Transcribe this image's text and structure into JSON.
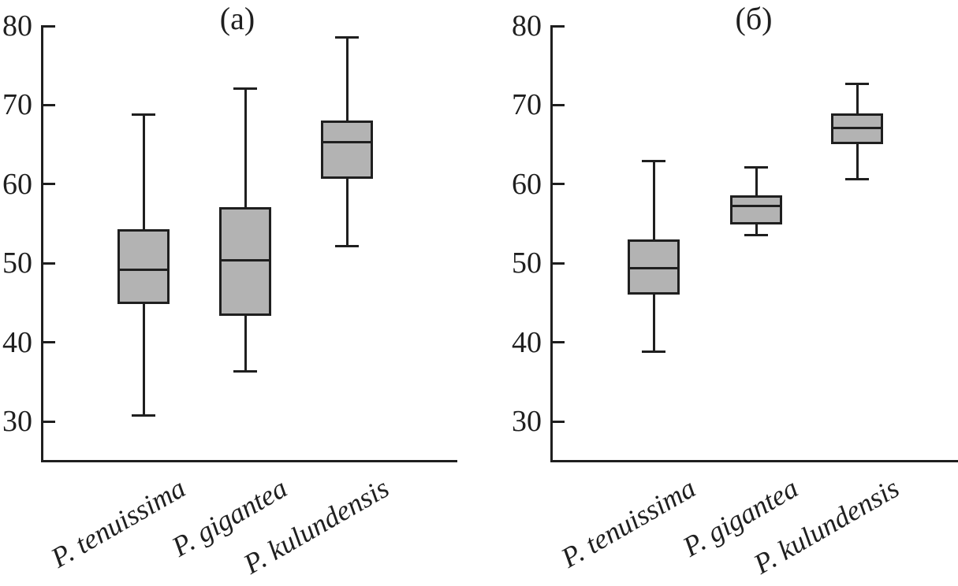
{
  "figure": {
    "background": "#ffffff",
    "line_color": "#1f1f1f",
    "box_fill": "#b3b3b3"
  },
  "chart_data": [
    {
      "type": "boxplot",
      "panel_label": "(а)",
      "categories": [
        "P. tenuissima",
        "P. gigantea",
        "P. kulundensis"
      ],
      "ylim": [
        25,
        80
      ],
      "yticks": [
        80,
        70,
        60,
        50,
        40,
        30
      ],
      "grid": false,
      "series": [
        {
          "name": "P. tenuissima",
          "low": 30.7,
          "q1": 44.8,
          "median": 49.2,
          "q3": 54.3,
          "high": 68.8
        },
        {
          "name": "P. gigantea",
          "low": 36.3,
          "q1": 43.3,
          "median": 50.4,
          "q3": 57.1,
          "high": 72.1
        },
        {
          "name": "P. kulundensis",
          "low": 52.2,
          "q1": 60.7,
          "median": 65.3,
          "q3": 68.0,
          "high": 78.6
        }
      ]
    },
    {
      "type": "boxplot",
      "panel_label": "(б)",
      "categories": [
        "P. tenuissima",
        "P. gigantea",
        "P. kulundensis"
      ],
      "ylim": [
        25,
        80
      ],
      "yticks": [
        80,
        70,
        60,
        50,
        40,
        30
      ],
      "grid": false,
      "series": [
        {
          "name": "P. tenuissima",
          "low": 38.8,
          "q1": 46.0,
          "median": 49.4,
          "q3": 53.0,
          "high": 62.9
        },
        {
          "name": "P. gigantea",
          "low": 53.6,
          "q1": 54.9,
          "median": 57.2,
          "q3": 58.6,
          "high": 62.1
        },
        {
          "name": "P. kulundensis",
          "low": 60.6,
          "q1": 65.1,
          "median": 67.1,
          "q3": 68.9,
          "high": 72.7
        }
      ]
    }
  ]
}
